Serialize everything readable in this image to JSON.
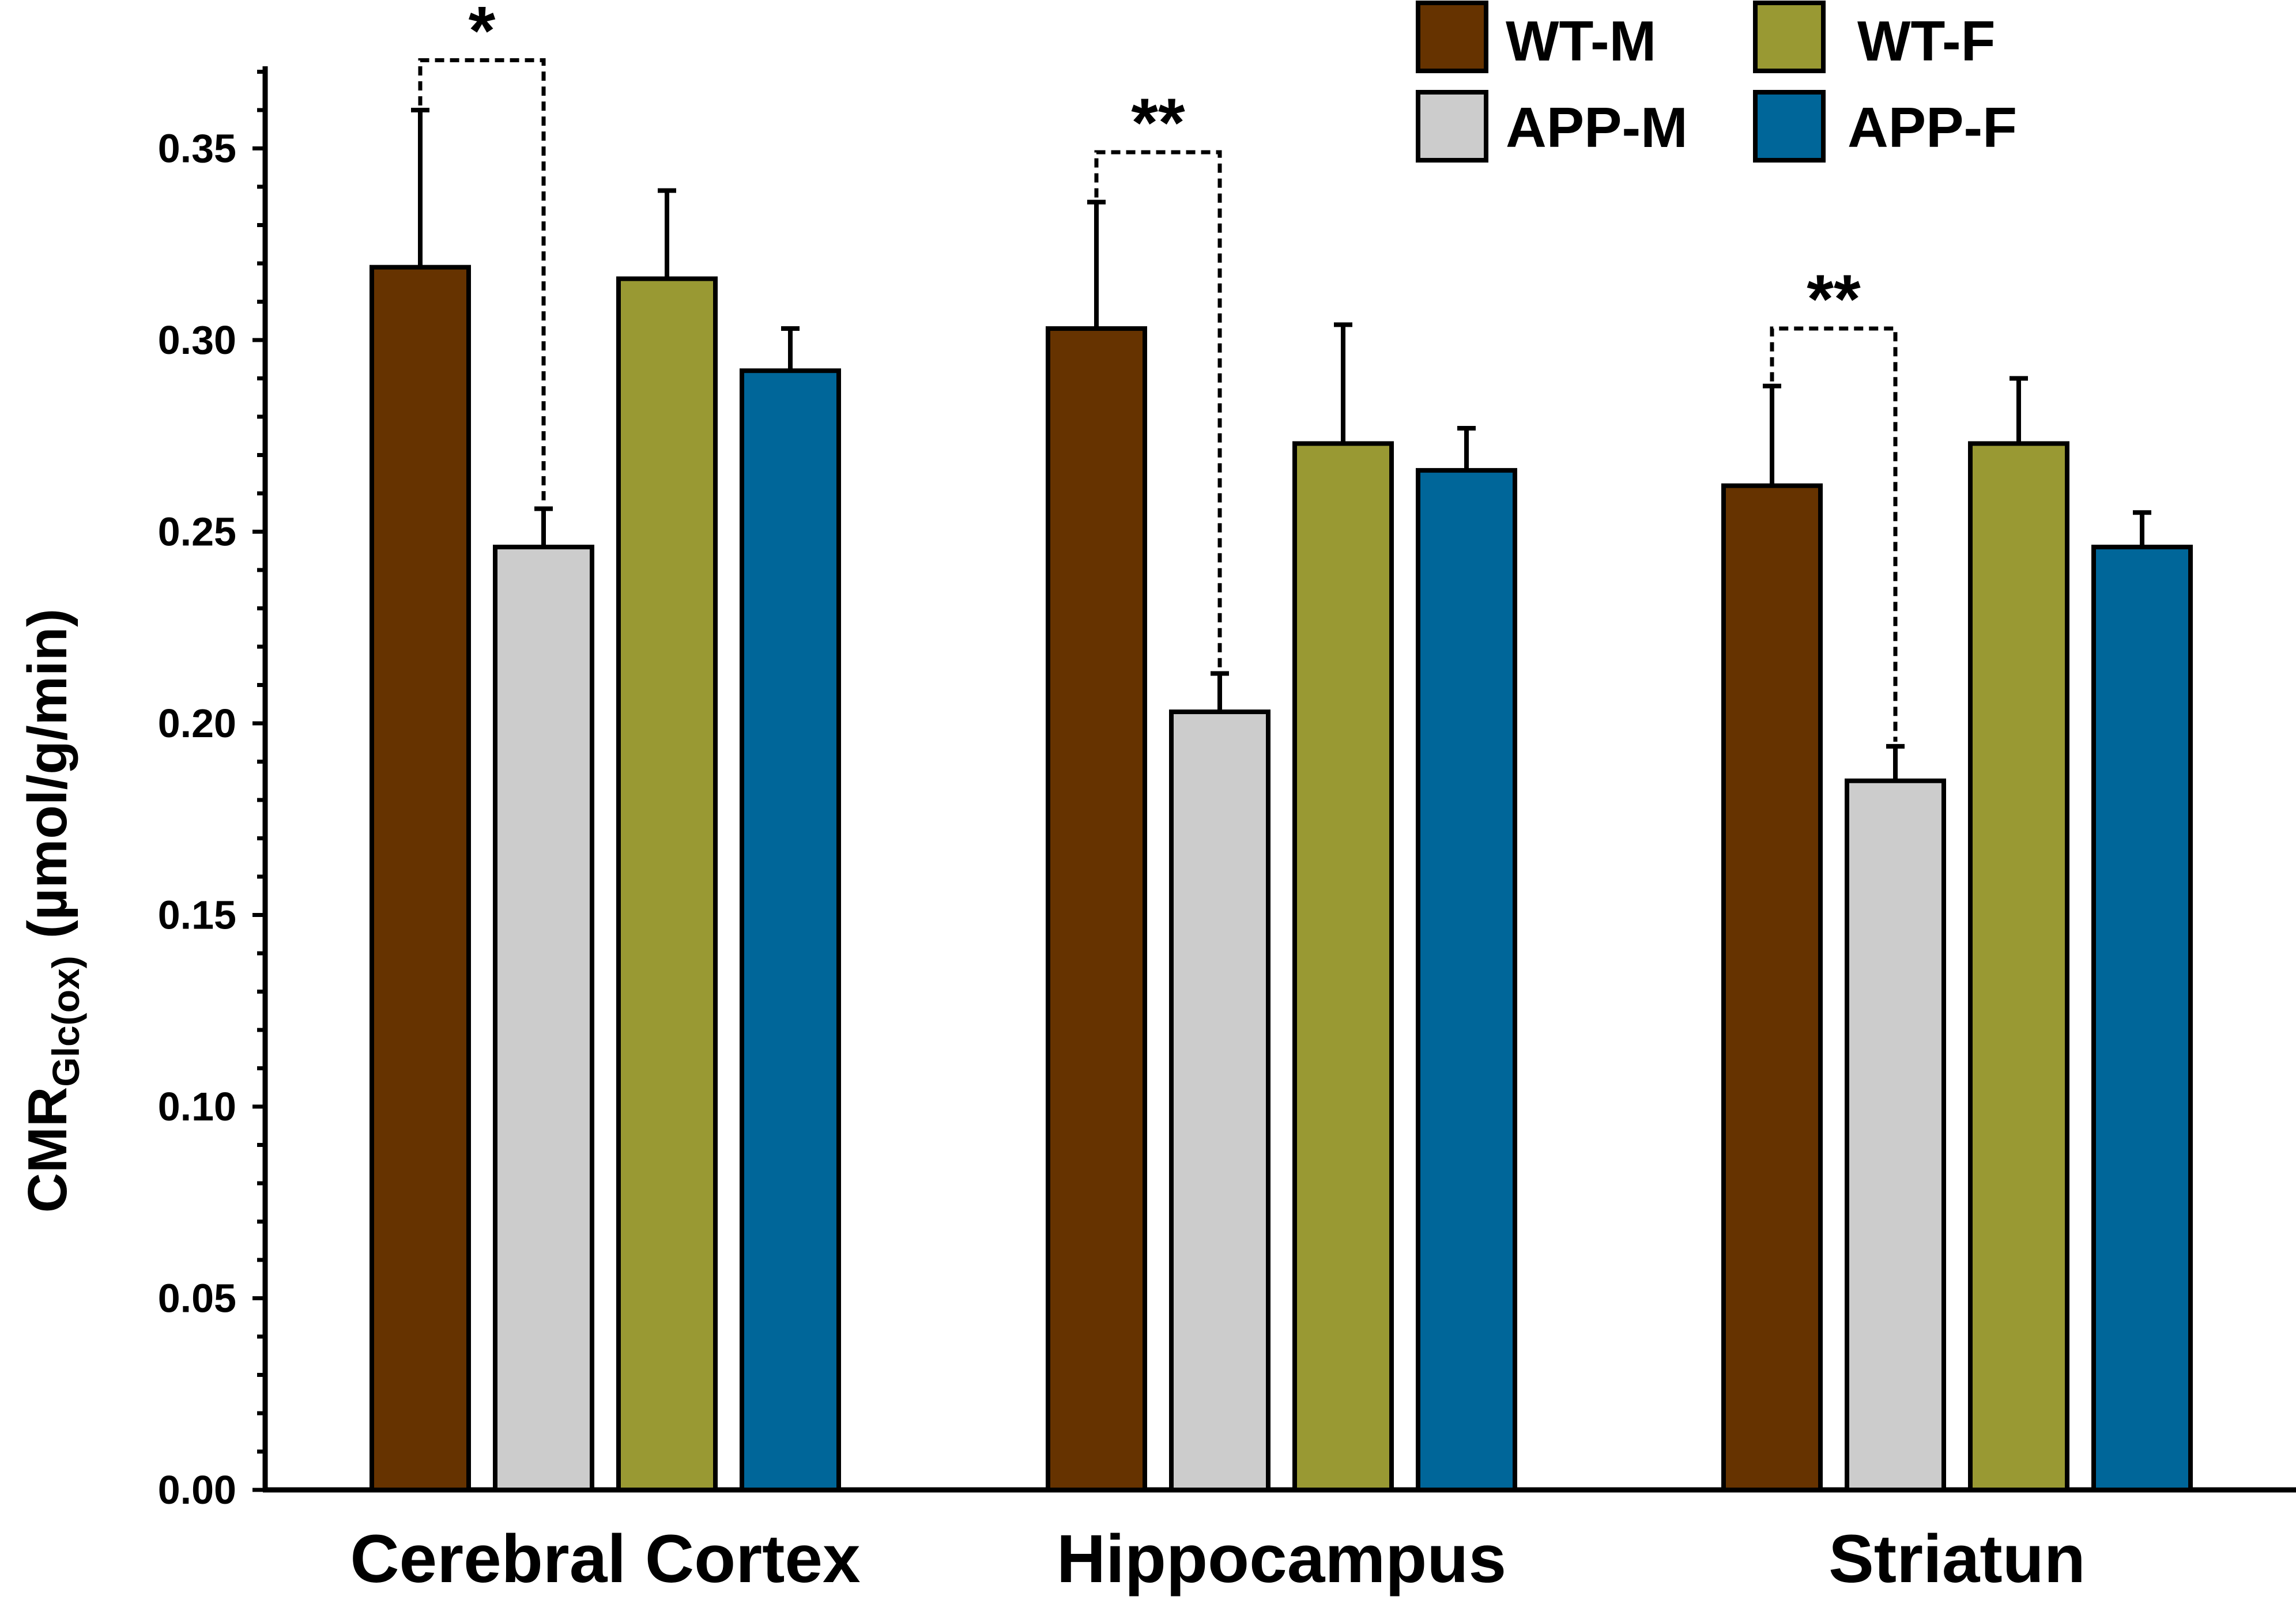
{
  "chart_data": {
    "type": "bar",
    "title": "",
    "xlabel": "",
    "ylabel": {
      "main": "CMR",
      "subscript": "Glc(ox)",
      "units": "(µmol/g/min)"
    },
    "ylim": [
      0,
      0.37
    ],
    "yticks": [
      "0.00",
      "0.05",
      "0.10",
      "0.15",
      "0.20",
      "0.25",
      "0.30",
      "0.35"
    ],
    "categories": [
      "Cerebral Cortex",
      "Hippocampus",
      "Striatun"
    ],
    "series": [
      {
        "name": "WT-M",
        "color": "#663300",
        "values": [
          0.319,
          0.303,
          0.262
        ],
        "errors": [
          0.041,
          0.033,
          0.026
        ]
      },
      {
        "name": "APP-M",
        "color": "#cccccc",
        "values": [
          0.246,
          0.203,
          0.185
        ],
        "errors": [
          0.01,
          0.01,
          0.009
        ]
      },
      {
        "name": "WT-F",
        "color": "#999933",
        "values": [
          0.316,
          0.273,
          0.273
        ],
        "errors": [
          0.023,
          0.031,
          0.017
        ]
      },
      {
        "name": "APP-F",
        "color": "#006699",
        "values": [
          0.292,
          0.266,
          0.246
        ],
        "errors": [
          0.011,
          0.011,
          0.009
        ]
      }
    ],
    "significance": [
      {
        "category": 0,
        "from_series": 0,
        "to_series": 1,
        "label": "*",
        "level": 0.373
      },
      {
        "category": 1,
        "from_series": 0,
        "to_series": 1,
        "label": "**",
        "level": 0.349
      },
      {
        "category": 2,
        "from_series": 0,
        "to_series": 1,
        "label": "**",
        "level": 0.303
      }
    ],
    "legend": {
      "placement": "top-right",
      "columns": [
        "WT-M",
        "APP-M",
        "WT-F",
        "APP-F"
      ]
    },
    "grid": false
  }
}
